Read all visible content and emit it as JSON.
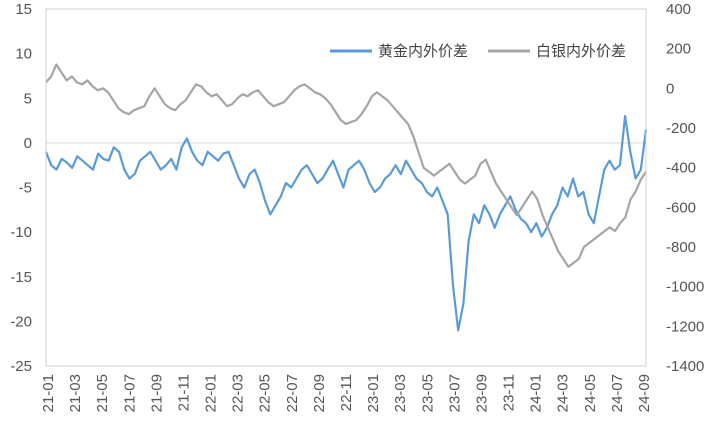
{
  "chart_data": {
    "type": "line",
    "legend_position": "top-right",
    "grid": false,
    "x_ticks": [
      "21-01",
      "21-03",
      "21-05",
      "21-07",
      "21-09",
      "21-11",
      "22-01",
      "22-03",
      "22-05",
      "22-07",
      "22-09",
      "22-11",
      "23-01",
      "23-03",
      "23-05",
      "23-07",
      "23-09",
      "23-11",
      "24-01",
      "24-03",
      "24-05",
      "24-07",
      "24-09"
    ],
    "y_left": {
      "range": [
        -25,
        15
      ],
      "ticks": [
        "15",
        "10",
        "5",
        "0",
        "-5",
        "-10",
        "-15",
        "-20",
        "-25"
      ]
    },
    "y_right": {
      "range": [
        -1400,
        400
      ],
      "ticks": [
        "400",
        "200",
        "0",
        "-200",
        "-400",
        "-600",
        "-800",
        "-1000",
        "-1200",
        "-1400"
      ]
    },
    "series": [
      {
        "name": "黄金内外价差",
        "axis": "left",
        "color": "#5B9BD5",
        "values": [
          -1.0,
          -2.5,
          -3.0,
          -1.8,
          -2.2,
          -2.8,
          -1.5,
          -2.0,
          -2.5,
          -3.0,
          -1.2,
          -1.8,
          -2.0,
          -0.5,
          -1.0,
          -3.0,
          -4.0,
          -3.5,
          -2.0,
          -1.5,
          -1.0,
          -2.0,
          -3.0,
          -2.5,
          -1.8,
          -3.0,
          -0.5,
          0.5,
          -1.0,
          -2.0,
          -2.5,
          -1.0,
          -1.5,
          -2.0,
          -1.2,
          -1.0,
          -2.5,
          -4.0,
          -5.0,
          -3.5,
          -3.0,
          -4.5,
          -6.5,
          -8.0,
          -7.0,
          -6.0,
          -4.5,
          -5.0,
          -4.0,
          -3.0,
          -2.5,
          -3.5,
          -4.5,
          -4.0,
          -3.0,
          -2.0,
          -3.5,
          -5.0,
          -3.0,
          -2.5,
          -2.0,
          -3.0,
          -4.5,
          -5.5,
          -5.0,
          -4.0,
          -3.5,
          -2.5,
          -3.5,
          -2.0,
          -3.0,
          -4.0,
          -4.5,
          -5.5,
          -6.0,
          -5.0,
          -6.5,
          -8.0,
          -16.0,
          -21.0,
          -18.0,
          -11.0,
          -8.0,
          -9.0,
          -7.0,
          -8.0,
          -9.5,
          -8.0,
          -7.0,
          -6.0,
          -7.5,
          -8.5,
          -9.0,
          -10.0,
          -9.0,
          -10.5,
          -9.5,
          -8.0,
          -7.0,
          -5.0,
          -6.0,
          -4.0,
          -6.0,
          -5.5,
          -8.0,
          -9.0,
          -6.0,
          -3.0,
          -2.0,
          -3.0,
          -2.5,
          3.0,
          -1.0,
          -4.0,
          -3.0,
          1.5
        ]
      },
      {
        "name": "白银内外价差",
        "axis": "right",
        "color": "#A5A5A5",
        "values": [
          30,
          60,
          120,
          80,
          40,
          60,
          30,
          20,
          40,
          10,
          -10,
          0,
          -20,
          -60,
          -100,
          -120,
          -130,
          -110,
          -100,
          -90,
          -40,
          0,
          -40,
          -80,
          -100,
          -110,
          -80,
          -60,
          -20,
          20,
          10,
          -20,
          -40,
          -30,
          -60,
          -90,
          -80,
          -50,
          -30,
          -40,
          -20,
          -10,
          -40,
          -70,
          -90,
          -80,
          -70,
          -40,
          -10,
          10,
          20,
          0,
          -20,
          -30,
          -50,
          -80,
          -120,
          -160,
          -180,
          -170,
          -160,
          -130,
          -90,
          -40,
          -20,
          -40,
          -60,
          -90,
          -120,
          -150,
          -180,
          -240,
          -320,
          -400,
          -420,
          -440,
          -420,
          -400,
          -380,
          -420,
          -460,
          -480,
          -460,
          -440,
          -380,
          -360,
          -420,
          -480,
          -520,
          -560,
          -600,
          -640,
          -600,
          -560,
          -520,
          -560,
          -640,
          -700,
          -760,
          -820,
          -860,
          -900,
          -880,
          -860,
          -800,
          -780,
          -760,
          -740,
          -720,
          -700,
          -720,
          -680,
          -650,
          -560,
          -520,
          -460,
          -420
        ]
      }
    ]
  }
}
